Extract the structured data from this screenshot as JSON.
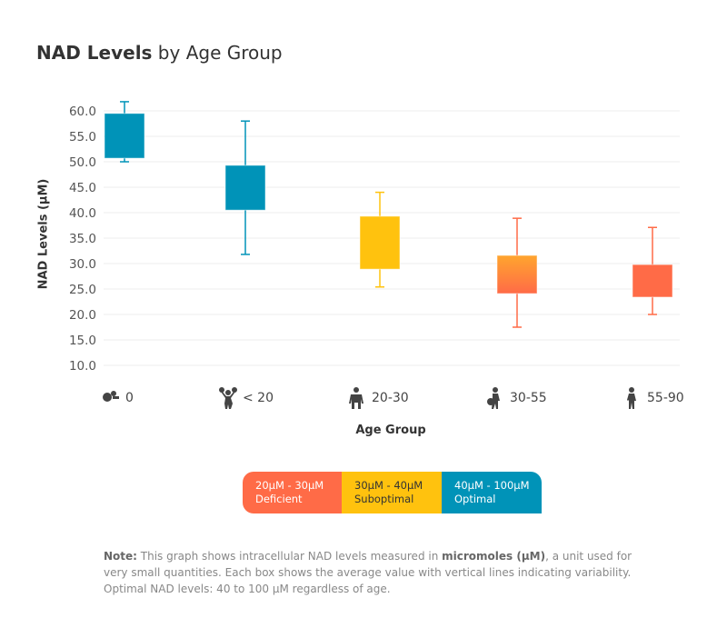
{
  "chart_data": {
    "type": "box",
    "title_bold": "NAD Levels",
    "title_rest": " by Age Group",
    "xlabel": "Age Group",
    "ylabel": "NAD Levels (µM)",
    "ylim": [
      10,
      60
    ],
    "yticks": [
      "60.0",
      "55.0",
      "50.0",
      "45.0",
      "40.0",
      "35.0",
      "30.0",
      "25.0",
      "20.0",
      "15.0",
      "10.0"
    ],
    "grid": true,
    "categories": [
      "0",
      "< 20",
      "20-30",
      "30-55",
      "55-90"
    ],
    "category_icons": [
      "baby-icon",
      "cheerleader-icon",
      "businessman-icon",
      "woman-with-bag-icon",
      "elderly-person-icon"
    ],
    "boxes": [
      {
        "q1": 50.7,
        "q3": 59.5,
        "min": 50.0,
        "max": 61.8,
        "color": "#0093b8"
      },
      {
        "q1": 40.5,
        "q3": 49.3,
        "min": 31.8,
        "max": 58.0,
        "color": "#0093b8"
      },
      {
        "q1": 28.9,
        "q3": 39.3,
        "min": 25.4,
        "max": 44.0,
        "color": "#ffc20e"
      },
      {
        "q1": 24.1,
        "q3": 31.6,
        "min": 17.5,
        "max": 38.9,
        "color": "#ff6b47",
        "gradient_top": "#ffa52e"
      },
      {
        "q1": 23.4,
        "q3": 29.8,
        "min": 20.0,
        "max": 37.1,
        "color": "#ff6b47"
      }
    ],
    "legend": [
      {
        "range": "20µM - 30µM",
        "label": "Deficient",
        "color": "#ff6b47"
      },
      {
        "range": "30µM - 40µM",
        "label": "Suboptimal",
        "color": "#ffc20e"
      },
      {
        "range": "40µM - 100µM",
        "label": "Optimal",
        "color": "#0093b8"
      }
    ]
  },
  "note": {
    "label": "Note:",
    "text1": " This graph shows intracellular NAD levels measured in ",
    "bold": "micromoles (µM)",
    "text2": ", a unit used for very small quantities. Each box shows the average value with vertical lines indicating variability. Optimal NAD levels: 40 to 100 µM regardless of age."
  }
}
